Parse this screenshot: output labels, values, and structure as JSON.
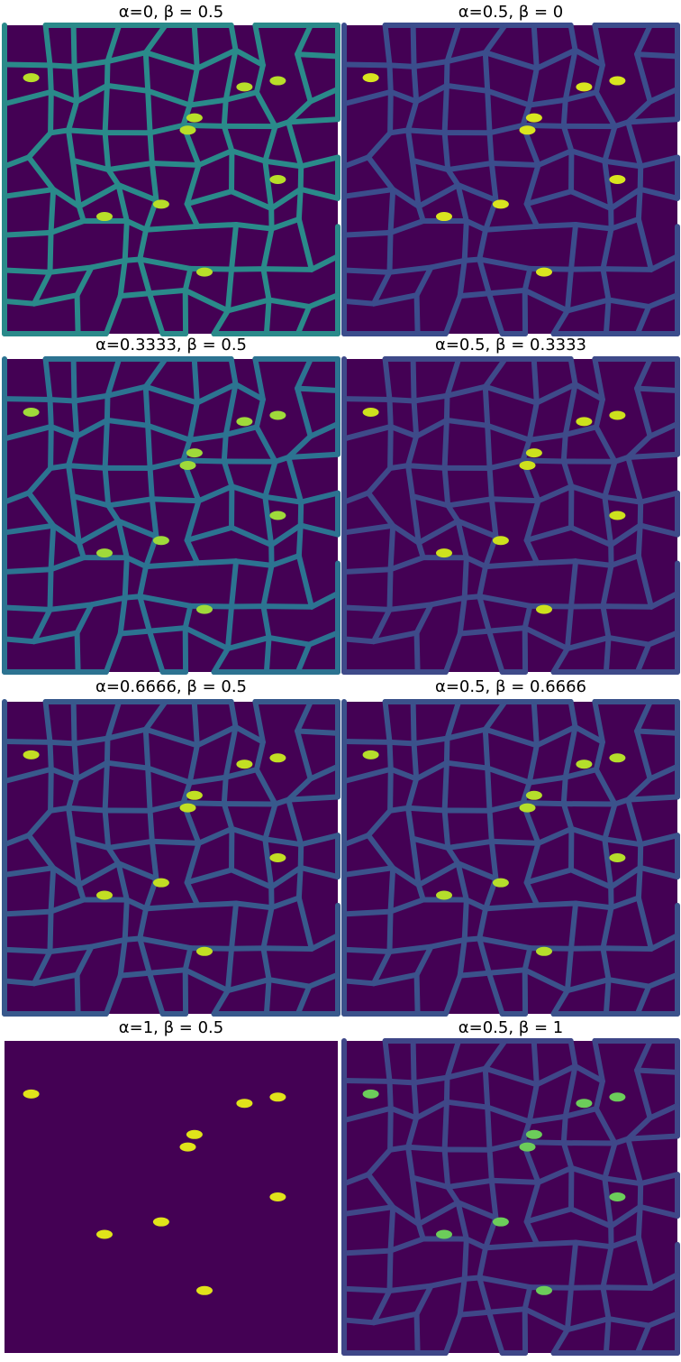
{
  "panels": [
    {
      "title": "α=0,  β = 0.5"
    },
    {
      "title": "α=0.5,  β = 0"
    },
    {
      "title": "α=0.3333,  β = 0.5"
    },
    {
      "title": "α=0.5,  β = 0.3333"
    },
    {
      "title": "α=0.6666,  β = 0.5"
    },
    {
      "title": "α=0.5,  β = 0.6666"
    },
    {
      "title": "α=1,  β = 0.5"
    },
    {
      "title": "α=0.5,  β = 1"
    }
  ]
}
